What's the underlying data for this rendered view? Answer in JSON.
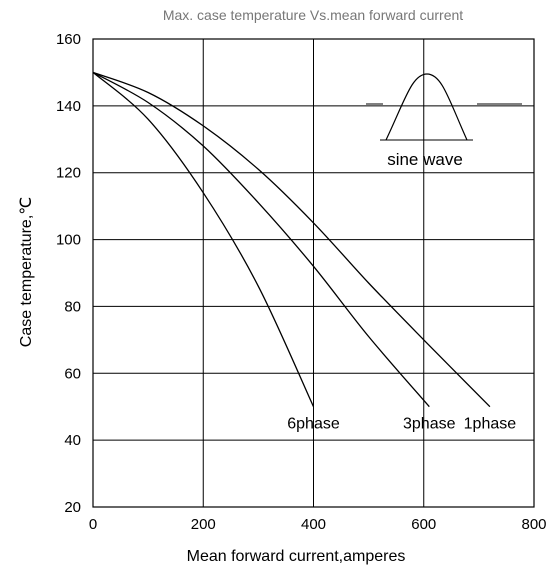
{
  "chart_data": {
    "type": "line",
    "title": "Max. case temperature  Vs.mean  forward  current",
    "xlabel": "Mean forward  current,amperes",
    "ylabel": "Case temperature,℃",
    "xlim": [
      0,
      800
    ],
    "ylim": [
      20,
      160
    ],
    "xticks": [
      "0",
      "200",
      "400",
      "600",
      "800"
    ],
    "yticks": [
      "20",
      "40",
      "60",
      "80",
      "100",
      "120",
      "140",
      "160"
    ],
    "grid": true,
    "annotation": "sine wave",
    "series": [
      {
        "name": "1phase",
        "points": [
          [
            0,
            150
          ],
          [
            100,
            144
          ],
          [
            200,
            134
          ],
          [
            300,
            121
          ],
          [
            400,
            105
          ],
          [
            500,
            87
          ],
          [
            600,
            70
          ],
          [
            720,
            50
          ]
        ]
      },
      {
        "name": "3phase",
        "points": [
          [
            0,
            150
          ],
          [
            100,
            141
          ],
          [
            200,
            128
          ],
          [
            300,
            111
          ],
          [
            400,
            92
          ],
          [
            500,
            71
          ],
          [
            610,
            50
          ]
        ]
      },
      {
        "name": "6phase",
        "points": [
          [
            0,
            150
          ],
          [
            100,
            136
          ],
          [
            200,
            114
          ],
          [
            300,
            86
          ],
          [
            400,
            50
          ]
        ]
      }
    ]
  }
}
